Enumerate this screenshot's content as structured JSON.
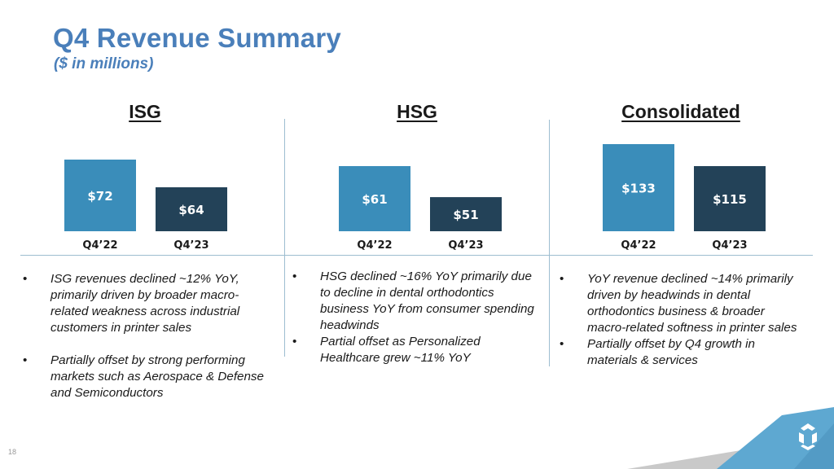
{
  "header": {
    "title": "Q4 Revenue Summary",
    "subtitle": "($ in millions)"
  },
  "colors": {
    "title": "#4a7fba",
    "bar_prior": "#3a8dba",
    "bar_current": "#234258",
    "divider": "#9dbdd0",
    "corner_blue": "#5ea8d1",
    "corner_gray": "#c9c9c9"
  },
  "chart_data": [
    {
      "type": "bar",
      "title": "ISG",
      "categories": [
        "Q4’22",
        "Q4’23"
      ],
      "values": [
        72,
        64
      ],
      "data_labels": [
        "$72",
        "$64"
      ],
      "xlabel": "",
      "ylabel": "",
      "ylim": [
        51.3,
        72
      ],
      "grid": false
    },
    {
      "type": "bar",
      "title": "HSG",
      "categories": [
        "Q4’22",
        "Q4’23"
      ],
      "values": [
        61,
        51
      ],
      "data_labels": [
        "$61",
        "$51"
      ],
      "xlabel": "",
      "ylabel": "",
      "ylim": [
        40,
        61
      ],
      "grid": false
    },
    {
      "type": "bar",
      "title": "Consolidated",
      "categories": [
        "Q4’22",
        "Q4’23"
      ],
      "values": [
        133,
        115
      ],
      "data_labels": [
        "$133",
        "$115"
      ],
      "xlabel": "",
      "ylabel": "",
      "ylim": [
        61.7,
        133
      ],
      "grid": false
    }
  ],
  "sections": [
    {
      "bullets": [
        "ISG revenues declined ~12% YoY, primarily driven by broader macro-related weakness across industrial customers in printer sales",
        "Partially offset by strong performing markets such as Aerospace & Defense and Semiconductors"
      ]
    },
    {
      "bullets": [
        "HSG declined ~16% YoY primarily due to decline in dental orthodontics business YoY from consumer spending headwinds",
        "Partial offset as Personalized Healthcare grew ~11% YoY"
      ]
    },
    {
      "bullets": [
        "YoY revenue declined ~14% primarily driven by headwinds in dental orthodontics business & broader macro-related softness in printer sales",
        "Partially offset by Q4 growth in materials & services"
      ]
    }
  ],
  "bullet_char": "•",
  "footer": {
    "page_number": "18",
    "logo": "3D Systems logo"
  }
}
